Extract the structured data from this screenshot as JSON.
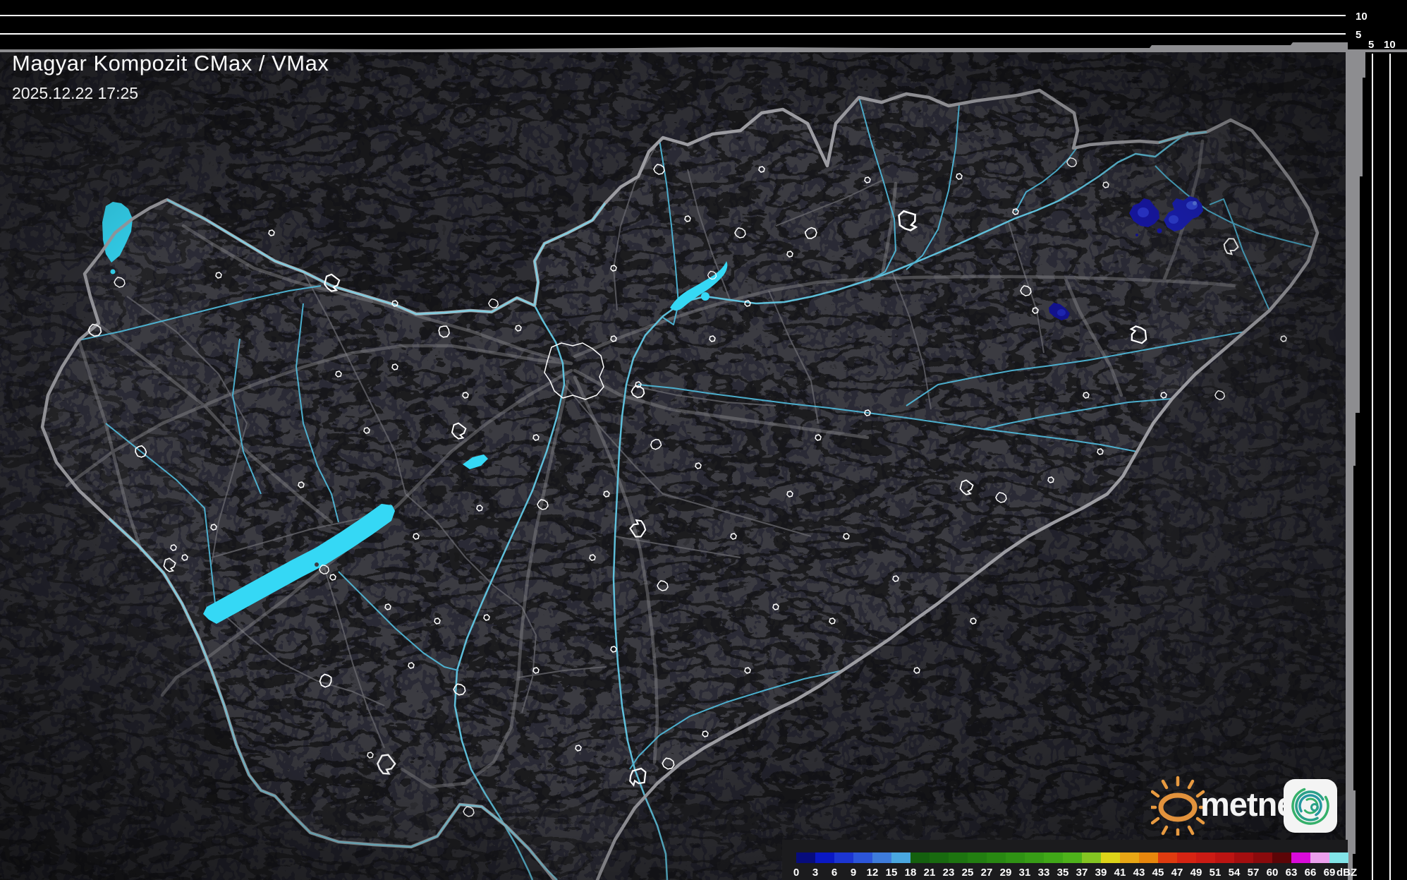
{
  "header": {
    "title": "Magyar Kompozit CMax / VMax",
    "datetime": "2025.12.22 17:25"
  },
  "branding": {
    "name": "metnet",
    "sun_icon": "sun-icon",
    "cyclone_icon": "cyclone-spiral-icon"
  },
  "side_axes": {
    "top": {
      "labels": [
        "10",
        "5"
      ]
    },
    "right": {
      "labels": [
        "5",
        "10"
      ]
    }
  },
  "scale": {
    "unit": "dBZ",
    "stops": [
      {
        "label": "0",
        "color": "#070c7c"
      },
      {
        "label": "3",
        "color": "#0a18c4"
      },
      {
        "label": "6",
        "color": "#1c35d2"
      },
      {
        "label": "9",
        "color": "#2c55da"
      },
      {
        "label": "12",
        "color": "#3e7cdc"
      },
      {
        "label": "15",
        "color": "#4aa7e0"
      },
      {
        "label": "18",
        "color": "#14600e"
      },
      {
        "label": "21",
        "color": "#186a0f"
      },
      {
        "label": "23",
        "color": "#1d7410"
      },
      {
        "label": "25",
        "color": "#227e11"
      },
      {
        "label": "27",
        "color": "#288812"
      },
      {
        "label": "29",
        "color": "#2f9214"
      },
      {
        "label": "31",
        "color": "#379c16"
      },
      {
        "label": "33",
        "color": "#40a718"
      },
      {
        "label": "35",
        "color": "#4eb21b"
      },
      {
        "label": "37",
        "color": "#84c522"
      },
      {
        "label": "39",
        "color": "#ddd419"
      },
      {
        "label": "41",
        "color": "#e9a715"
      },
      {
        "label": "43",
        "color": "#e8870d"
      },
      {
        "label": "45",
        "color": "#df3b10"
      },
      {
        "label": "47",
        "color": "#d62413"
      },
      {
        "label": "49",
        "color": "#cb1b14"
      },
      {
        "label": "51",
        "color": "#bb1412"
      },
      {
        "label": "54",
        "color": "#a30e0f"
      },
      {
        "label": "57",
        "color": "#8a0a0c"
      },
      {
        "label": "60",
        "color": "#5c0507"
      },
      {
        "label": "63",
        "color": "#d90bd9"
      },
      {
        "label": "66",
        "color": "#eb9fec"
      },
      {
        "label": "69",
        "color": "#82e4e8"
      }
    ]
  },
  "colors": {
    "background_outside": "#2e2e33",
    "country_fill": "#3b3b41",
    "country_border": "#a2a2a8",
    "river": "#4fb6d6",
    "lake": "#35d8f5",
    "road": "#8a8a8e",
    "city_outline": "#ffffff",
    "panel_black": "#000000",
    "profile_gray": "#8d8d90",
    "echo_dark_blue": "#1717a6",
    "echo_bright_blue": "#3448dd"
  }
}
